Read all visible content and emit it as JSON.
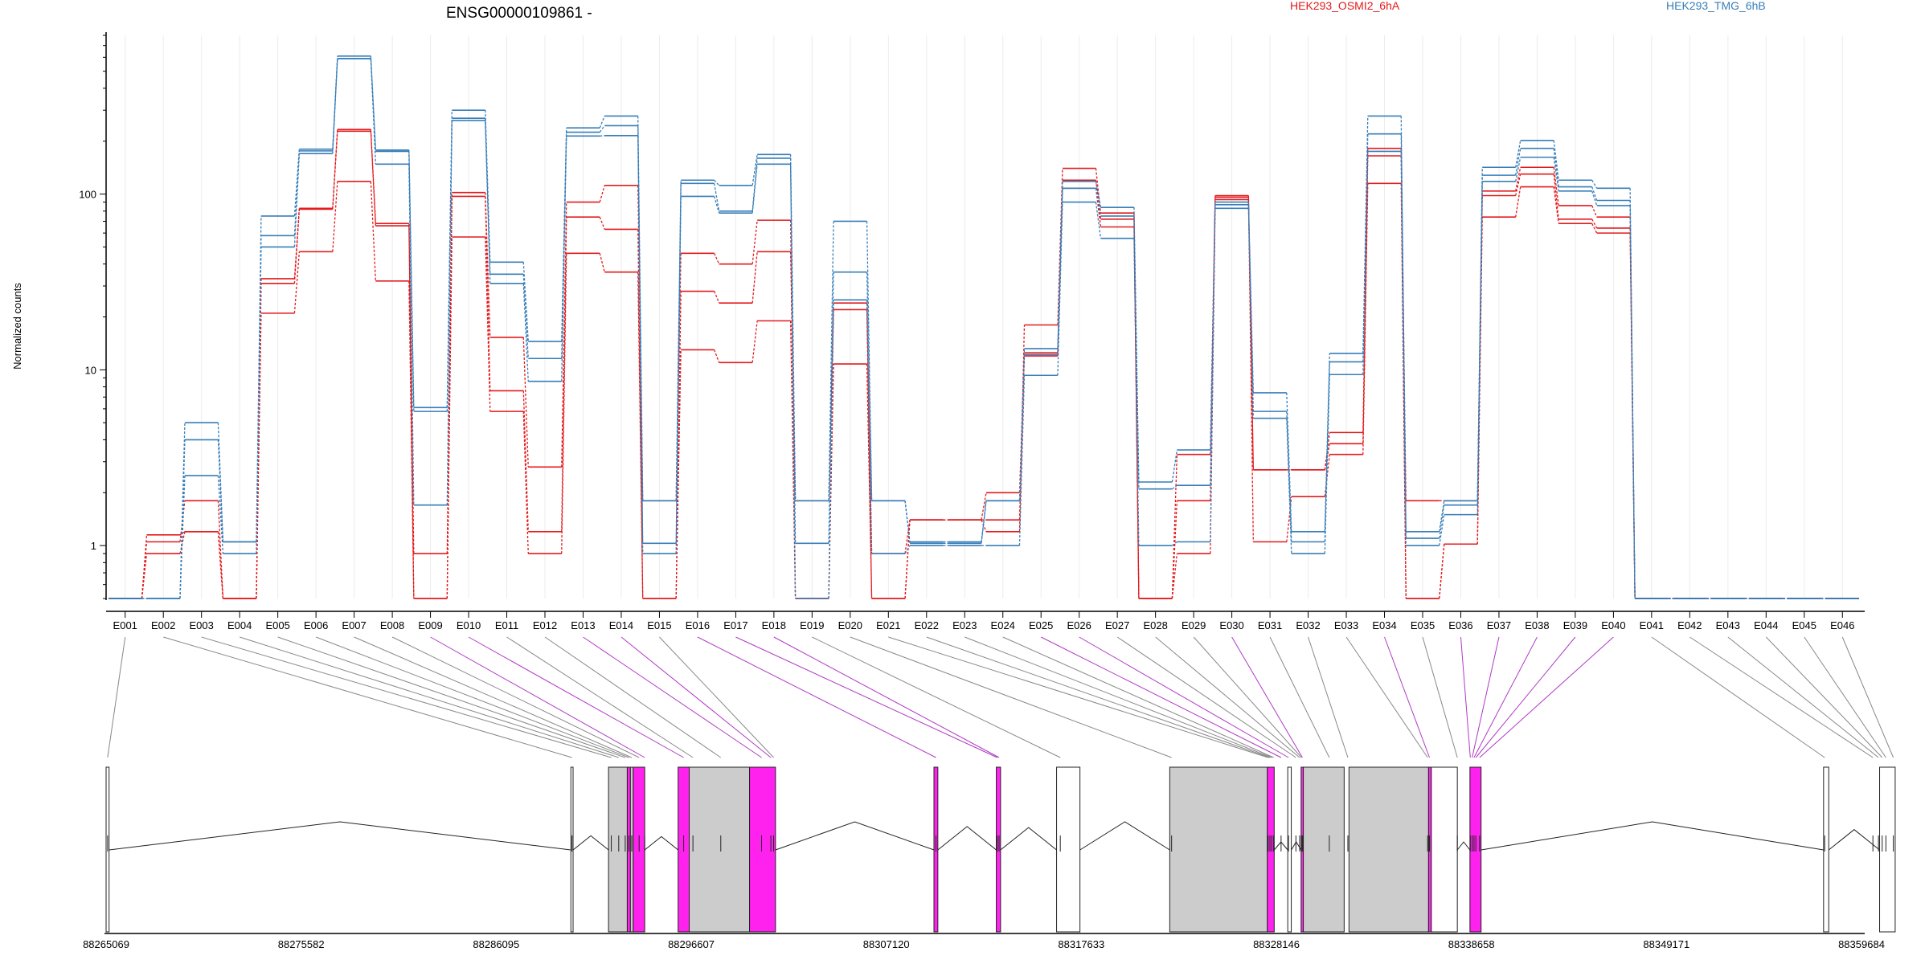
{
  "chart_data": {
    "type": "line",
    "title": "ENSG00000109861 -",
    "ylabel": "Normalized counts",
    "yscale": "log",
    "ylim": [
      0.5,
      800
    ],
    "y_ticks": [
      1,
      10,
      100
    ],
    "y_tick_labels": [
      "1",
      "10",
      "100"
    ],
    "categories": [
      "E001",
      "E002",
      "E003",
      "E004",
      "E005",
      "E006",
      "E007",
      "E008",
      "E009",
      "E010",
      "E011",
      "E012",
      "E013",
      "E014",
      "E015",
      "E016",
      "E017",
      "E018",
      "E019",
      "E020",
      "E021",
      "E022",
      "E023",
      "E024",
      "E025",
      "E026",
      "E027",
      "E028",
      "E029",
      "E030",
      "E031",
      "E032",
      "E033",
      "E034",
      "E035",
      "E036",
      "E037",
      "E038",
      "E039",
      "E040",
      "E041",
      "E042",
      "E043",
      "E044",
      "E045",
      "E046"
    ],
    "legend": [
      {
        "name": "HEK293_OSMI2_6hA",
        "color": "#e41a1c"
      },
      {
        "name": "HEK293_TMG_6hB",
        "color": "#377eb8"
      }
    ],
    "series": [
      {
        "name": "HEK293_OSMI2_6hA",
        "color": "#e41a1c",
        "values": [
          0.5,
          0.9,
          1.2,
          0.5,
          21,
          47,
          118,
          32,
          0.5,
          57,
          5.8,
          0.9,
          46,
          36,
          0.5,
          13,
          11,
          19,
          0.5,
          10.8,
          0.5,
          1.4,
          1.4,
          1.4,
          12,
          108,
          65,
          0.5,
          0.9,
          93,
          1.05,
          1.9,
          3.3,
          115,
          0.5,
          1.02,
          74,
          110,
          68,
          60,
          0.5,
          0.5,
          0.5,
          0.5,
          0.5,
          0.5
        ]
      },
      {
        "name": "HEK293_OSMI2_6hA",
        "color": "#e41a1c",
        "values": [
          0.5,
          1.05,
          1.8,
          0.5,
          31,
          82,
          228,
          66,
          0.9,
          97,
          7.6,
          1.2,
          74,
          63,
          0.5,
          28,
          24,
          47,
          1.8,
          22,
          0.5,
          1.4,
          1.4,
          2.0,
          12.5,
          120,
          72,
          0.5,
          1.8,
          96,
          2.7,
          2.7,
          3.8,
          165,
          0.5,
          1.02,
          98,
          130,
          72,
          64,
          0.5,
          0.5,
          0.5,
          0.5,
          0.5,
          0.5
        ]
      },
      {
        "name": "HEK293_OSMI2_6hA",
        "color": "#e41a1c",
        "values": [
          0.5,
          1.15,
          1.2,
          0.5,
          33,
          83,
          233,
          68,
          0.5,
          102,
          15.3,
          2.8,
          90,
          112,
          1.8,
          46,
          40,
          71,
          0.5,
          24,
          0.9,
          1.4,
          1.4,
          1.2,
          18,
          140,
          78,
          0.5,
          3.3,
          98,
          2.7,
          2.7,
          4.4,
          182,
          1.8,
          1.8,
          104,
          142,
          86,
          74,
          0.5,
          0.5,
          0.5,
          0.5,
          0.5,
          0.5
        ]
      },
      {
        "name": "HEK293_TMG_6hB",
        "color": "#377eb8",
        "values": [
          0.5,
          0.5,
          2.5,
          0.9,
          50,
          170,
          590,
          148,
          1.7,
          262,
          31,
          8.6,
          214,
          215,
          0.9,
          97,
          78,
          148,
          0.5,
          25,
          0.9,
          1.0,
          1.0,
          1.0,
          9.3,
          90,
          56,
          1.0,
          1.05,
          83,
          5.3,
          0.9,
          9.4,
          175,
          1.0,
          1.5,
          118,
          162,
          104,
          86,
          0.5,
          0.5,
          0.5,
          0.5,
          0.5,
          0.5
        ]
      },
      {
        "name": "HEK293_TMG_6hB",
        "color": "#377eb8",
        "values": [
          0.5,
          0.5,
          4.0,
          1.05,
          58,
          176,
          590,
          175,
          5.8,
          270,
          35,
          11.6,
          225,
          245,
          1.03,
          115,
          80,
          160,
          1.03,
          36,
          1.8,
          1.03,
          1.03,
          1.8,
          12.2,
          108,
          75,
          2.1,
          2.2,
          87,
          5.8,
          1.05,
          11.1,
          220,
          1.1,
          1.7,
          128,
          182,
          110,
          92,
          0.5,
          0.5,
          0.5,
          0.5,
          0.5,
          0.5
        ]
      },
      {
        "name": "HEK293_TMG_6hB",
        "color": "#377eb8",
        "values": [
          0.5,
          0.5,
          5.0,
          1.05,
          75,
          180,
          610,
          178,
          6.1,
          300,
          41,
          14.5,
          238,
          278,
          1.8,
          120,
          112,
          168,
          1.8,
          70,
          1.8,
          1.05,
          1.05,
          1.8,
          13.2,
          118,
          84,
          2.3,
          3.5,
          90,
          7.4,
          1.2,
          12.4,
          278,
          1.2,
          1.8,
          142,
          202,
          120,
          108,
          0.5,
          0.5,
          0.5,
          0.5,
          0.5,
          0.5
        ]
      }
    ],
    "genomic_axis": {
      "tick_labels": [
        "88265069",
        "88275582",
        "88286095",
        "88296607",
        "88307120",
        "88317633",
        "88328146",
        "88338658",
        "88349171",
        "88359684"
      ]
    },
    "gene_model": {
      "range": [
        88265069,
        88359684
      ],
      "boxes": [
        {
          "start": 88265069,
          "end": 88265230,
          "fill": "#ffffff"
        },
        {
          "start": 88290120,
          "end": 88290240,
          "fill": "#ffffff"
        },
        {
          "start": 88292150,
          "end": 88293160,
          "fill": "#cccccc"
        },
        {
          "start": 88293160,
          "end": 88293330,
          "fill": "#ff22ee"
        },
        {
          "start": 88293330,
          "end": 88293480,
          "fill": "#cccccc"
        },
        {
          "start": 88293480,
          "end": 88294100,
          "fill": "#ff22ee"
        },
        {
          "start": 88295900,
          "end": 88296500,
          "fill": "#ff22ee"
        },
        {
          "start": 88296500,
          "end": 88299750,
          "fill": "#cccccc"
        },
        {
          "start": 88299750,
          "end": 88301150,
          "fill": "#ff22ee"
        },
        {
          "start": 88309690,
          "end": 88309900,
          "fill": "#ff22ee"
        },
        {
          "start": 88313050,
          "end": 88313280,
          "fill": "#ff22ee"
        },
        {
          "start": 88316300,
          "end": 88317560,
          "fill": "#ffffff"
        },
        {
          "start": 88322400,
          "end": 88327660,
          "fill": "#cccccc"
        },
        {
          "start": 88327660,
          "end": 88328030,
          "fill": "#ff22ee"
        },
        {
          "start": 88328760,
          "end": 88328950,
          "fill": "#ffffff"
        },
        {
          "start": 88329480,
          "end": 88329600,
          "fill": "#ff22ee"
        },
        {
          "start": 88329600,
          "end": 88331800,
          "fill": "#cccccc"
        },
        {
          "start": 88332060,
          "end": 88336350,
          "fill": "#cccccc"
        },
        {
          "start": 88336350,
          "end": 88336500,
          "fill": "#ff22ee"
        },
        {
          "start": 88336500,
          "end": 88337900,
          "fill": "#ffffff"
        },
        {
          "start": 88338580,
          "end": 88339180,
          "fill": "#ff22ee"
        },
        {
          "start": 88357640,
          "end": 88357920,
          "fill": "#ffffff"
        },
        {
          "start": 88360660,
          "end": 88361500,
          "fill": "#ffffff"
        }
      ],
      "hinge_left": [
        88265230,
        88290240,
        88293480,
        88294100,
        88296500,
        88301150,
        88309900,
        88313280,
        88317560,
        88328030,
        88328950,
        88337900,
        88339180,
        88357920
      ],
      "hinge_right": [
        88290120,
        88292150,
        88293480,
        88295900,
        88296500,
        88309690,
        88313050,
        88316300,
        88322400,
        88328760,
        88329480,
        88338580,
        88357640,
        88360660
      ],
      "exon_positions": [
        88265150,
        88290180,
        88292300,
        88292700,
        88293050,
        88293250,
        88293400,
        88293800,
        88294100,
        88296200,
        88296700,
        88298200,
        88300400,
        88300900,
        88301050,
        88309800,
        88313100,
        88313200,
        88316500,
        88322500,
        88327700,
        88327800,
        88327900,
        88328000,
        88328400,
        88328800,
        88329200,
        88329400,
        88329500,
        88329550,
        88331000,
        88332000,
        88336300,
        88336400,
        88337900,
        88338600,
        88338700,
        88338800,
        88338900,
        88339100,
        88357700,
        88360300,
        88360600,
        88360800,
        88361000,
        88361400
      ],
      "highlighted_exons": [
        9,
        10,
        13,
        14,
        16,
        17,
        18,
        25,
        26,
        30,
        34,
        36,
        37,
        38,
        39,
        40
      ]
    }
  }
}
